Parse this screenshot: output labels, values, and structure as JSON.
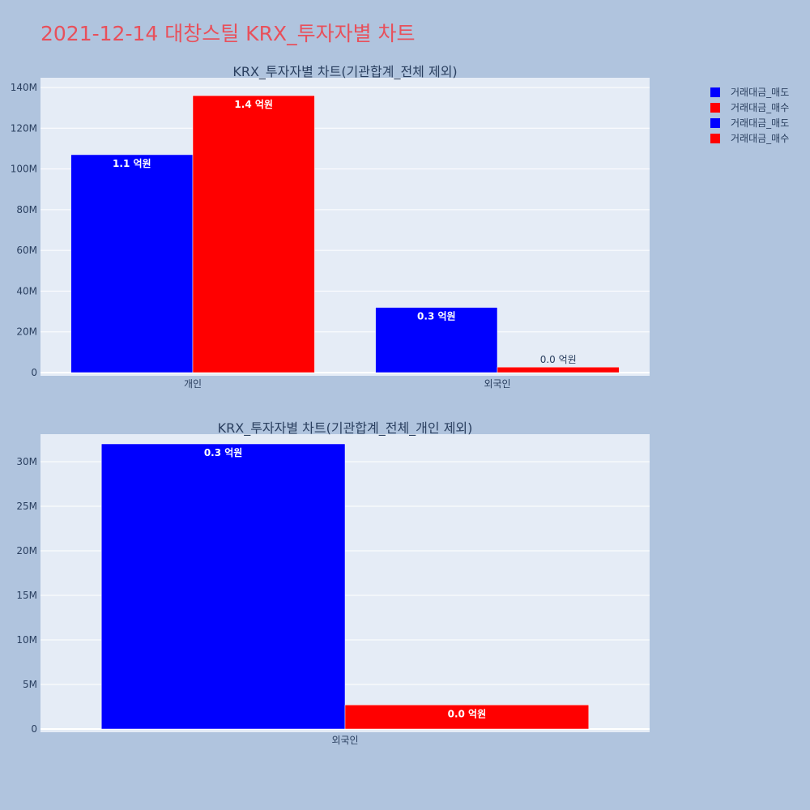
{
  "title": "2021-12-14 대창스틸 KRX_투자자별 차트",
  "colors": {
    "background": "#b0c4de",
    "plot_bg": "#e5ecf6",
    "grid": "#ffffff",
    "title": "#e8505b",
    "text": "#2a3f5f",
    "sell": "#0000ff",
    "buy": "#ff0000"
  },
  "legend": [
    {
      "label": "거래대금_매도",
      "color": "#0000ff"
    },
    {
      "label": "거래대금_매수",
      "color": "#ff0000"
    },
    {
      "label": "거래대금_매도",
      "color": "#0000ff"
    },
    {
      "label": "거래대금_매수",
      "color": "#ff0000"
    }
  ],
  "chart_data": [
    {
      "type": "bar",
      "title": "KRX_투자자별 차트(기관합계_전체 제외)",
      "categories": [
        "개인",
        "외국인"
      ],
      "series": [
        {
          "name": "거래대금_매도",
          "color": "#0000ff",
          "values": [
            107000000,
            32000000
          ],
          "labels": [
            "1.1 억원",
            "0.3 억원"
          ]
        },
        {
          "name": "거래대금_매수",
          "color": "#ff0000",
          "values": [
            136000000,
            2700000
          ],
          "labels": [
            "1.4 억원",
            "0.0 억원"
          ]
        }
      ],
      "yticks": [
        0,
        20000000,
        40000000,
        60000000,
        80000000,
        100000000,
        120000000,
        140000000
      ],
      "ytick_labels": [
        "0",
        "20M",
        "40M",
        "60M",
        "80M",
        "100M",
        "120M",
        "140M"
      ],
      "ylim": [
        0,
        140000000
      ],
      "grid": true
    },
    {
      "type": "bar",
      "title": "KRX_투자자별 차트(기관합계_전체_개인 제외)",
      "categories": [
        "외국인"
      ],
      "series": [
        {
          "name": "거래대금_매도",
          "color": "#0000ff",
          "values": [
            32000000
          ],
          "labels": [
            "0.3 억원"
          ]
        },
        {
          "name": "거래대금_매수",
          "color": "#ff0000",
          "values": [
            2700000
          ],
          "labels": [
            "0.0 억원"
          ]
        }
      ],
      "yticks": [
        0,
        5000000,
        10000000,
        15000000,
        20000000,
        25000000,
        30000000
      ],
      "ytick_labels": [
        "0",
        "5M",
        "10M",
        "15M",
        "20M",
        "25M",
        "30M"
      ],
      "ylim": [
        0,
        32000000
      ],
      "grid": true
    }
  ]
}
